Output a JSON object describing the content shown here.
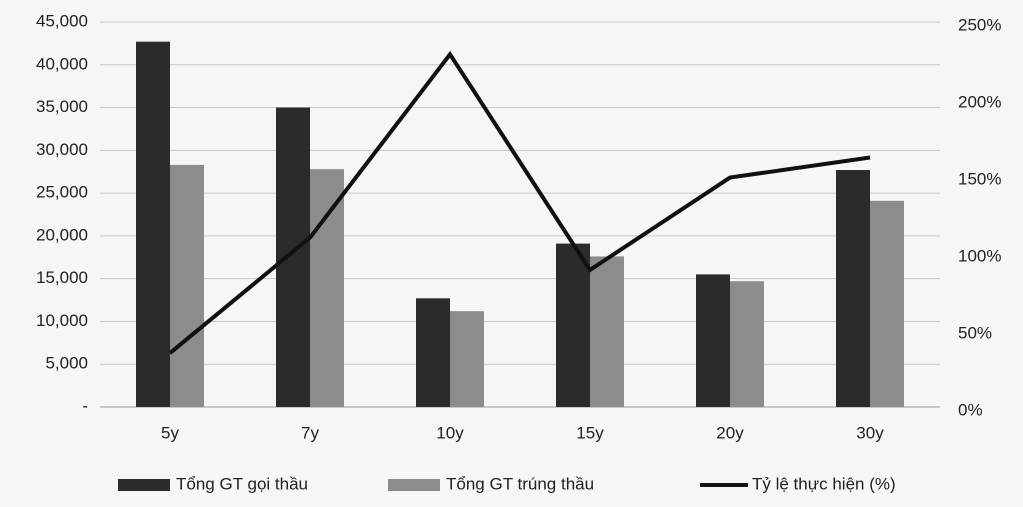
{
  "chart_data": {
    "type": "bar_line",
    "categories": [
      "5y",
      "7y",
      "10y",
      "15y",
      "20y",
      "30y"
    ],
    "series": [
      {
        "name": "Tổng GT gọi thầu",
        "color": "#2b2b2b",
        "values": [
          42700,
          35000,
          12700,
          19100,
          15500,
          27700
        ]
      },
      {
        "name": "Tổng GT trúng thầu",
        "color": "#8c8c8c",
        "values": [
          28300,
          27800,
          11200,
          17600,
          14700,
          24100
        ]
      },
      {
        "name": "Tỷ lệ thực hiện (%)",
        "color": "#111111",
        "axis": "y2",
        "type": "line",
        "values": [
          35,
          110,
          229,
          89,
          149,
          162
        ]
      }
    ],
    "ylim": [
      0,
      45000
    ],
    "yticks": [
      {
        "value": 0,
        "label": "-"
      },
      {
        "value": 5000,
        "label": "5,000"
      },
      {
        "value": 10000,
        "label": "10,000"
      },
      {
        "value": 15000,
        "label": "15,000"
      },
      {
        "value": 20000,
        "label": "20,000"
      },
      {
        "value": 25000,
        "label": "25,000"
      },
      {
        "value": 30000,
        "label": "30,000"
      },
      {
        "value": 35000,
        "label": "35,000"
      },
      {
        "value": 40000,
        "label": "40,000"
      },
      {
        "value": 45000,
        "label": "45,000"
      }
    ],
    "y2lim": [
      0,
      250
    ],
    "y2ticks": [
      {
        "value": 0,
        "label": "0%"
      },
      {
        "value": 50,
        "label": "50%"
      },
      {
        "value": 100,
        "label": "100%"
      },
      {
        "value": 150,
        "label": "150%"
      },
      {
        "value": 200,
        "label": "200%"
      },
      {
        "value": 250,
        "label": "250%"
      }
    ],
    "grid": true,
    "legend": "bottom"
  }
}
